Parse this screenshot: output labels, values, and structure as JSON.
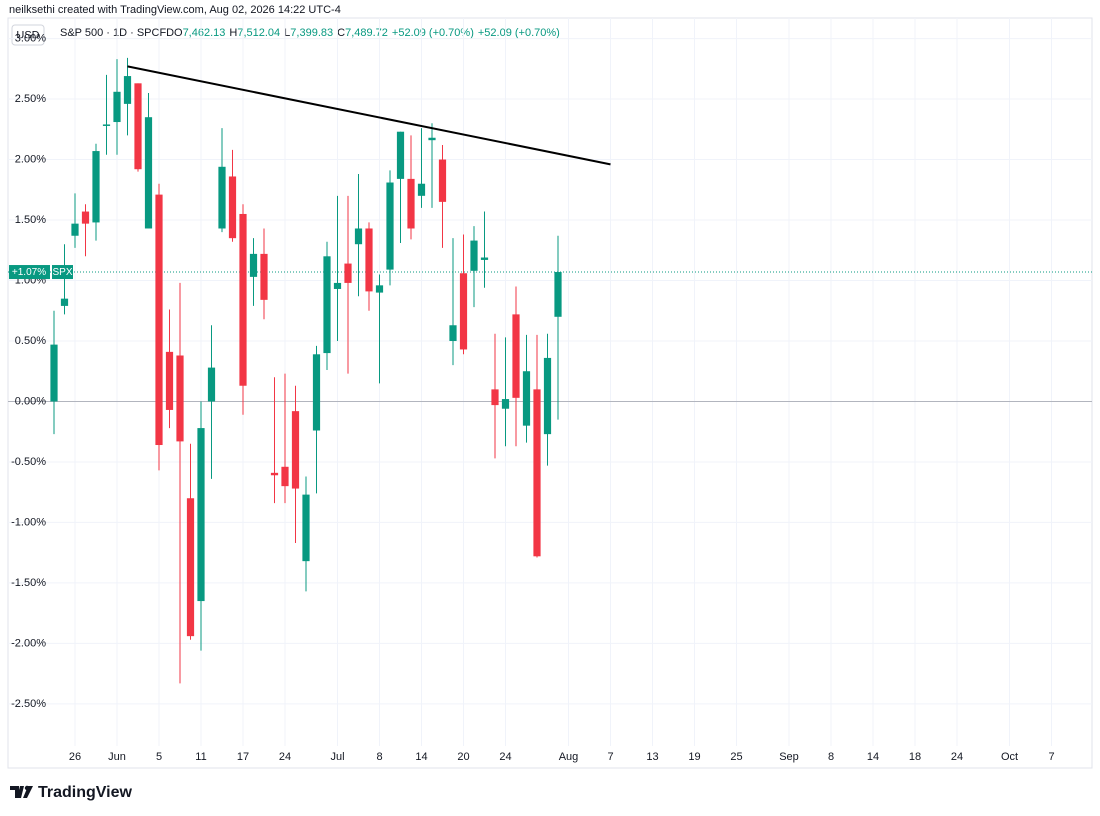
{
  "chart_data": {
    "type": "candlestick",
    "attribution": "neilksethi created with TradingView.com, Aug 02, 2026 14:22 UTC-4",
    "currency": "USD",
    "symbol": "S&P 500 · 1D · SPCFD",
    "ohlc_header": [
      {
        "key": "O",
        "text": "7,462.13"
      },
      {
        "key": "H",
        "text": "7,512.04"
      },
      {
        "key": "L",
        "text": "7,399.83"
      },
      {
        "key": "C",
        "text": "7,489.72"
      }
    ],
    "change": [
      "+52.09 (+0.70%)",
      "+52.09 (+0.70%)"
    ],
    "last_price": {
      "value": 1.07,
      "label": "+1.07%",
      "ticker": "SPX"
    },
    "brand": "TradingView",
    "up_color": "#089981",
    "down_color": "#f23645",
    "categories": [
      null,
      null,
      "26",
      null,
      null,
      null,
      "Jun",
      null,
      null,
      null,
      "5",
      null,
      null,
      null,
      "11",
      null,
      null,
      null,
      "17",
      null,
      null,
      null,
      "24",
      null,
      null,
      null,
      null,
      "Jul",
      null,
      null,
      null,
      "8",
      null,
      null,
      null,
      "14",
      null,
      null,
      null,
      "20",
      null,
      null,
      null,
      "24",
      null,
      null,
      null,
      null,
      null,
      "Aug",
      null,
      null,
      null,
      "7",
      null,
      null,
      null,
      "13",
      null,
      null,
      null,
      "19",
      null,
      null,
      null,
      "25",
      null,
      null,
      null,
      null,
      "Sep",
      null,
      null,
      null,
      "8",
      null,
      null,
      null,
      "14",
      null,
      null,
      null,
      "18",
      null,
      null,
      null,
      "24",
      null,
      null,
      null,
      null,
      "Oct",
      null,
      null,
      null,
      "7",
      null,
      null
    ],
    "open": [
      0.0,
      0.79,
      1.37,
      1.57,
      1.48,
      2.28,
      2.31,
      2.46,
      2.63,
      1.43,
      1.71,
      0.41,
      0.38,
      -0.8,
      -1.65,
      0.0,
      1.43,
      1.86,
      1.55,
      1.03,
      1.22,
      -0.59,
      -0.54,
      -0.08,
      -1.32,
      -0.24,
      0.4,
      0.93,
      1.14,
      1.3,
      1.43,
      0.9,
      1.09,
      1.84,
      1.84,
      1.7,
      2.16,
      2.0,
      0.5,
      1.06,
      1.08,
      1.17,
      0.1,
      -0.06,
      0.72,
      -0.2,
      0.1,
      -0.27,
      0.7,
      null,
      null,
      null,
      null,
      null,
      null,
      null,
      null,
      null,
      null,
      null,
      null,
      null,
      null,
      null,
      null,
      null,
      null,
      null,
      null,
      null,
      null,
      null,
      null,
      null,
      null,
      null,
      null,
      null,
      null,
      null,
      null,
      null,
      null,
      null,
      null,
      null,
      null,
      null,
      null,
      null,
      null,
      null,
      null,
      null,
      null,
      null,
      null,
      null
    ],
    "high": [
      0.75,
      1.3,
      1.72,
      1.63,
      2.13,
      2.7,
      2.83,
      2.84,
      2.63,
      2.55,
      1.8,
      0.76,
      0.98,
      -0.35,
      0.0,
      0.63,
      2.26,
      2.08,
      1.63,
      1.35,
      1.43,
      0.2,
      0.23,
      0.13,
      -0.62,
      0.46,
      1.32,
      1.7,
      1.7,
      1.88,
      1.48,
      1.05,
      1.91,
      2.23,
      2.2,
      2.26,
      2.3,
      2.12,
      1.35,
      1.38,
      1.45,
      1.57,
      0.56,
      0.53,
      0.95,
      0.55,
      0.55,
      0.56,
      1.37,
      null,
      null,
      null,
      null,
      null,
      null,
      null,
      null,
      null,
      null,
      null,
      null,
      null,
      null,
      null,
      null,
      null,
      null,
      null,
      null,
      null,
      null,
      null,
      null,
      null,
      null,
      null,
      null,
      null,
      null,
      null,
      null,
      null,
      null,
      null,
      null,
      null,
      null,
      null,
      null,
      null,
      null,
      null,
      null,
      null,
      null,
      null,
      null,
      null
    ],
    "low": [
      -0.27,
      0.72,
      1.27,
      1.2,
      1.33,
      2.04,
      2.04,
      2.2,
      1.9,
      1.43,
      -0.57,
      -0.22,
      -2.33,
      -1.97,
      -2.06,
      -0.64,
      1.4,
      1.32,
      -0.11,
      0.79,
      0.68,
      -0.84,
      -0.84,
      -1.17,
      -1.57,
      -0.76,
      0.26,
      0.5,
      0.23,
      0.87,
      0.75,
      0.15,
      0.96,
      1.31,
      1.34,
      1.6,
      1.6,
      1.27,
      0.3,
      0.39,
      0.78,
      0.94,
      -0.47,
      -0.37,
      -0.37,
      -0.34,
      -1.29,
      -0.53,
      -0.15,
      null,
      null,
      null,
      null,
      null,
      null,
      null,
      null,
      null,
      null,
      null,
      null,
      null,
      null,
      null,
      null,
      null,
      null,
      null,
      null,
      null,
      null,
      null,
      null,
      null,
      null,
      null,
      null,
      null,
      null,
      null,
      null,
      null,
      null,
      null,
      null,
      null,
      null,
      null,
      null,
      null,
      null,
      null,
      null,
      null,
      null,
      null,
      null,
      null
    ],
    "close": [
      0.47,
      0.85,
      1.47,
      1.47,
      2.07,
      2.29,
      2.56,
      2.69,
      1.92,
      2.35,
      -0.36,
      -0.07,
      -0.33,
      -1.94,
      -0.22,
      0.28,
      1.94,
      1.35,
      0.13,
      1.22,
      0.84,
      -0.61,
      -0.7,
      -0.72,
      -0.77,
      0.39,
      1.2,
      0.98,
      0.98,
      1.43,
      0.91,
      0.96,
      1.81,
      2.23,
      1.43,
      1.8,
      2.18,
      1.65,
      0.63,
      0.43,
      1.33,
      1.19,
      -0.03,
      0.02,
      0.03,
      0.25,
      -1.28,
      0.36,
      1.07,
      null,
      null,
      null,
      null,
      null,
      null,
      null,
      null,
      null,
      null,
      null,
      null,
      null,
      null,
      null,
      null,
      null,
      null,
      null,
      null,
      null,
      null,
      null,
      null,
      null,
      null,
      null,
      null,
      null,
      null,
      null,
      null,
      null,
      null,
      null,
      null,
      null,
      null,
      null,
      null,
      null,
      null,
      null,
      null,
      null,
      null,
      null,
      null,
      null
    ],
    "trendline": {
      "start_index": 7,
      "start_value": 2.77,
      "end_index": 53,
      "end_value": 1.96,
      "color": "#000000"
    },
    "ylim": [
      -3.03,
      3.17
    ],
    "yticks": [
      {
        "value": 3,
        "label": "3.00%"
      },
      {
        "value": 2.5,
        "label": "2.50%"
      },
      {
        "value": 2,
        "label": "2.00%"
      },
      {
        "value": 1.5,
        "label": "1.50%"
      },
      {
        "value": 1,
        "label": "1.00%"
      },
      {
        "value": 0.5,
        "label": "0.50%"
      },
      {
        "value": 0,
        "label": "0.00%"
      },
      {
        "value": -0.5,
        "label": "-0.50%"
      },
      {
        "value": -1,
        "label": "-1.00%"
      },
      {
        "value": -1.5,
        "label": "-1.50%"
      },
      {
        "value": -2,
        "label": "-2.00%"
      },
      {
        "value": -2.5,
        "label": "-2.50%"
      }
    ],
    "grid": true
  }
}
